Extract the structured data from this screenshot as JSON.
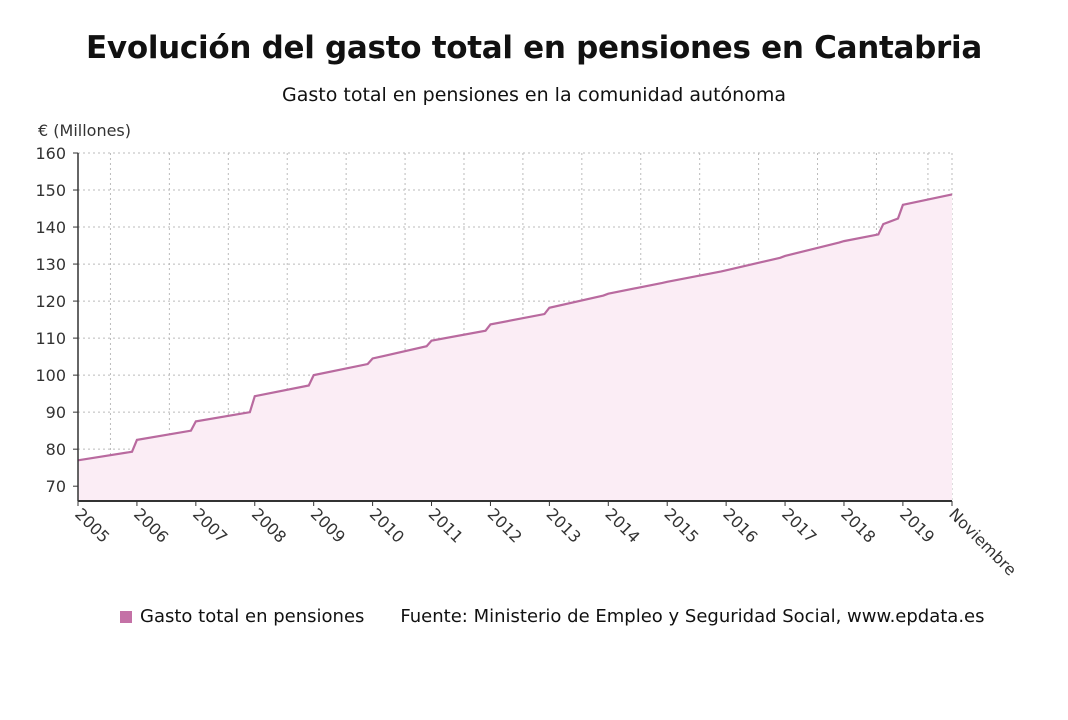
{
  "chart_data": {
    "type": "area",
    "title": "Evolución del gasto total en pensiones en Cantabria",
    "subtitle": "Gasto total en pensiones en la comunidad autónoma",
    "ylabel": "€ (Millones)",
    "xlabel": "",
    "ylim": [
      66,
      160
    ],
    "yticks": [
      70,
      80,
      90,
      100,
      110,
      120,
      130,
      140,
      150,
      160
    ],
    "xticks": [
      "2005",
      "2006",
      "2007",
      "2008",
      "2009",
      "2010",
      "2011",
      "2012",
      "2013",
      "2014",
      "2015",
      "2016",
      "2017",
      "2018",
      "2019",
      "Noviembre"
    ],
    "xrange": [
      "2005-01",
      "2019-11"
    ],
    "grid": true,
    "legend_position": "bottom-left",
    "series": [
      {
        "name": "Gasto total en pensiones",
        "color": "#b96a9f",
        "fill": "#fbedf5",
        "points": [
          [
            "2005-01",
            77.0
          ],
          [
            "2005-12",
            79.3
          ],
          [
            "2006-01",
            82.5
          ],
          [
            "2006-12",
            85.0
          ],
          [
            "2007-01",
            87.5
          ],
          [
            "2007-12",
            90.0
          ],
          [
            "2008-01",
            94.3
          ],
          [
            "2008-12",
            97.2
          ],
          [
            "2009-01",
            100.0
          ],
          [
            "2009-12",
            103.0
          ],
          [
            "2010-01",
            104.5
          ],
          [
            "2010-12",
            107.8
          ],
          [
            "2011-01",
            109.3
          ],
          [
            "2011-12",
            112.0
          ],
          [
            "2012-01",
            113.7
          ],
          [
            "2012-12",
            116.5
          ],
          [
            "2013-01",
            118.2
          ],
          [
            "2013-12",
            121.5
          ],
          [
            "2014-01",
            122.0
          ],
          [
            "2014-12",
            124.9
          ],
          [
            "2015-01",
            125.2
          ],
          [
            "2015-12",
            128.0
          ],
          [
            "2016-01",
            128.3
          ],
          [
            "2016-12",
            131.7
          ],
          [
            "2017-01",
            132.2
          ],
          [
            "2017-12",
            135.8
          ],
          [
            "2018-01",
            136.2
          ],
          [
            "2018-08",
            138.0
          ],
          [
            "2018-09",
            140.8
          ],
          [
            "2018-12",
            142.3
          ],
          [
            "2019-01",
            146.0
          ],
          [
            "2019-11",
            148.8
          ]
        ]
      }
    ]
  },
  "legend": {
    "label": "Gasto total en pensiones",
    "color": "#c471a6"
  },
  "source": "Fuente: Ministerio de Empleo y Seguridad Social, www.epdata.es"
}
